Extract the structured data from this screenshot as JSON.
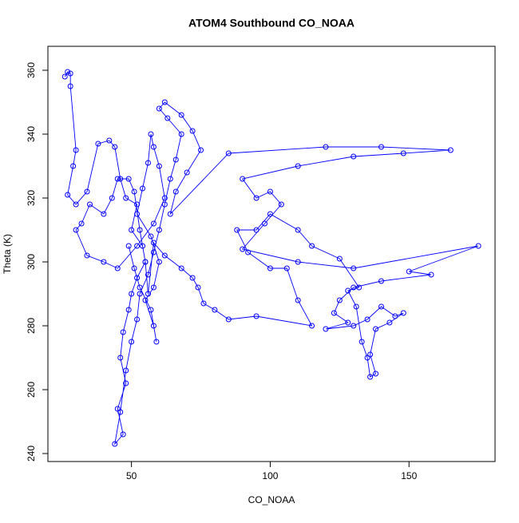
{
  "chart_data": {
    "type": "line",
    "title": "ATOM4 Southbound CO_NOAA",
    "xlabel": "CO_NOAA",
    "ylabel": "Theta (K)",
    "color": "#0000ff",
    "markers": true,
    "x": [
      26,
      27,
      28,
      28,
      30,
      29,
      27,
      30,
      34,
      38,
      42,
      44,
      46,
      48,
      52,
      50,
      54,
      55,
      52,
      50,
      49,
      47,
      46,
      48,
      45,
      47,
      44,
      46,
      48,
      50,
      52,
      53,
      56,
      58,
      60,
      62,
      64,
      66,
      68,
      63,
      60,
      62,
      68,
      72,
      75,
      70,
      66,
      64,
      85,
      120,
      140,
      165,
      148,
      130,
      110,
      90,
      95,
      100,
      104,
      98,
      90,
      110,
      130,
      175,
      150,
      158,
      140,
      130,
      125,
      123,
      128,
      120,
      130,
      135,
      140,
      145,
      148,
      143,
      138,
      136,
      138,
      136,
      135,
      133,
      131,
      128,
      132,
      125,
      115,
      110,
      100,
      95,
      88,
      92,
      100,
      106,
      110,
      115,
      95,
      85,
      80,
      76,
      74,
      72,
      68,
      62,
      58,
      56,
      55,
      53,
      51,
      49,
      45,
      43,
      40,
      35,
      32,
      30,
      34,
      40,
      45,
      52,
      58,
      62,
      60,
      58,
      57,
      56,
      54,
      52,
      57,
      60,
      58,
      55,
      58,
      59,
      57,
      53,
      51,
      49
    ],
    "values": [
      358,
      359.5,
      359,
      355,
      335,
      330,
      321,
      318,
      322,
      337,
      338,
      336,
      326,
      320,
      318,
      310,
      305,
      300,
      295,
      290,
      285,
      278,
      270,
      262,
      254,
      246,
      243,
      253,
      266,
      275,
      282,
      290,
      296,
      303,
      310,
      318,
      326,
      332,
      340,
      345,
      348,
      350,
      346,
      341,
      335,
      328,
      322,
      315,
      334,
      336,
      336,
      335,
      334,
      333,
      330,
      326,
      320,
      322,
      318,
      312,
      304,
      300,
      298,
      305,
      297,
      296,
      294,
      292,
      288,
      284,
      281,
      279,
      280,
      282,
      286,
      283,
      284,
      281,
      279,
      271,
      265,
      264,
      270,
      275,
      286,
      291,
      292,
      301,
      305,
      310,
      315,
      310,
      310,
      303,
      298,
      298,
      288,
      280,
      283,
      282,
      285,
      287,
      292,
      295,
      298,
      302,
      306,
      290,
      300,
      310,
      322,
      326,
      326,
      320,
      315,
      318,
      312,
      310,
      302,
      300,
      298,
      305,
      312,
      320,
      330,
      336,
      340,
      331,
      323,
      315,
      308,
      300,
      292,
      288,
      280,
      275,
      285,
      292,
      298,
      305
    ],
    "xlim": [
      19.9,
      181
    ],
    "ylim": [
      237.5,
      367.5
    ],
    "xticks": [
      50,
      100,
      150
    ],
    "yticks": [
      240,
      260,
      280,
      300,
      320,
      340,
      360
    ]
  }
}
